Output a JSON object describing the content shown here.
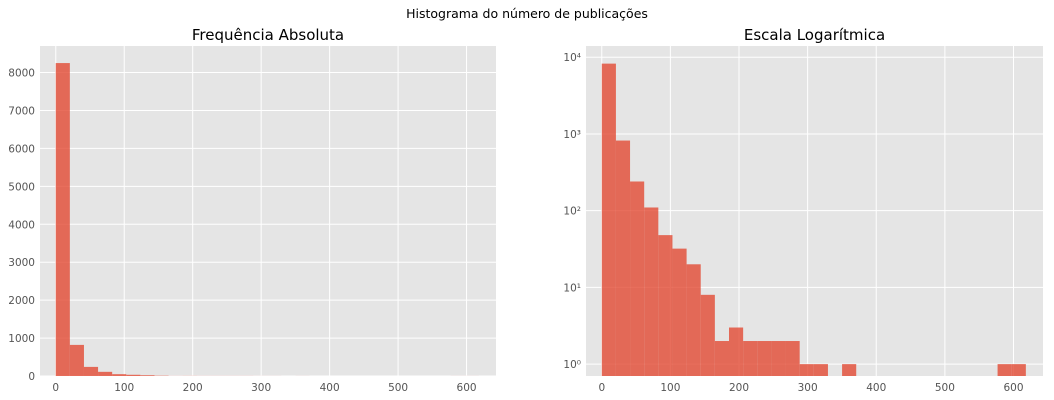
{
  "suptitle": "Histograma do número de publicações",
  "colors": {
    "bar": "#e24a33",
    "panel_bg": "#e5e5e5",
    "grid": "#ffffff",
    "tick_text": "#555555"
  },
  "chart_data": [
    {
      "type": "bar",
      "title": "Frequência Absoluta",
      "scale": "linear",
      "xlim": [
        -23,
        643
      ],
      "ylim": [
        0,
        8700
      ],
      "xticks": [
        0,
        100,
        200,
        300,
        400,
        500,
        600
      ],
      "yticks": [
        0,
        1000,
        2000,
        3000,
        4000,
        5000,
        6000,
        7000,
        8000
      ],
      "ytick_labels": [
        "0",
        "1000",
        "2000",
        "3000",
        "4000",
        "5000",
        "6000",
        "7000",
        "8000"
      ],
      "grid": true,
      "bin_edges": [
        0,
        20.6,
        41.2,
        61.8,
        82.4,
        103,
        123.6,
        144.2,
        164.8,
        185.4,
        206,
        226.6,
        247.2,
        267.8,
        288.4,
        309,
        329.6,
        350.2,
        370.8,
        391.4,
        412,
        432.6,
        453.2,
        473.8,
        494.4,
        515,
        535.6,
        556.2,
        576.8,
        597.4,
        618
      ],
      "counts": [
        8250,
        820,
        240,
        110,
        48,
        32,
        20,
        8,
        2,
        3,
        2,
        2,
        2,
        2,
        1,
        1,
        0,
        1,
        0,
        0,
        0,
        0,
        0,
        0,
        0,
        0,
        0,
        0,
        1,
        1
      ]
    },
    {
      "type": "bar",
      "title": "Escala Logarítmica",
      "scale": "log",
      "xlim": [
        -23,
        643
      ],
      "ylim": [
        0.7,
        14000
      ],
      "xticks": [
        0,
        100,
        200,
        300,
        400,
        500,
        600
      ],
      "yticks": [
        1,
        10,
        100,
        1000,
        10000
      ],
      "ytick_labels": [
        "10⁰",
        "10¹",
        "10²",
        "10³",
        "10⁴"
      ],
      "grid": true,
      "bin_edges": [
        0,
        20.6,
        41.2,
        61.8,
        82.4,
        103,
        123.6,
        144.2,
        164.8,
        185.4,
        206,
        226.6,
        247.2,
        267.8,
        288.4,
        309,
        329.6,
        350.2,
        370.8,
        391.4,
        412,
        432.6,
        453.2,
        473.8,
        494.4,
        515,
        535.6,
        556.2,
        576.8,
        597.4,
        618
      ],
      "counts": [
        8250,
        820,
        240,
        110,
        48,
        32,
        20,
        8,
        2,
        3,
        2,
        2,
        2,
        2,
        1,
        1,
        0,
        1,
        0,
        0,
        0,
        0,
        0,
        0,
        0,
        0,
        0,
        0,
        1,
        1
      ]
    }
  ]
}
